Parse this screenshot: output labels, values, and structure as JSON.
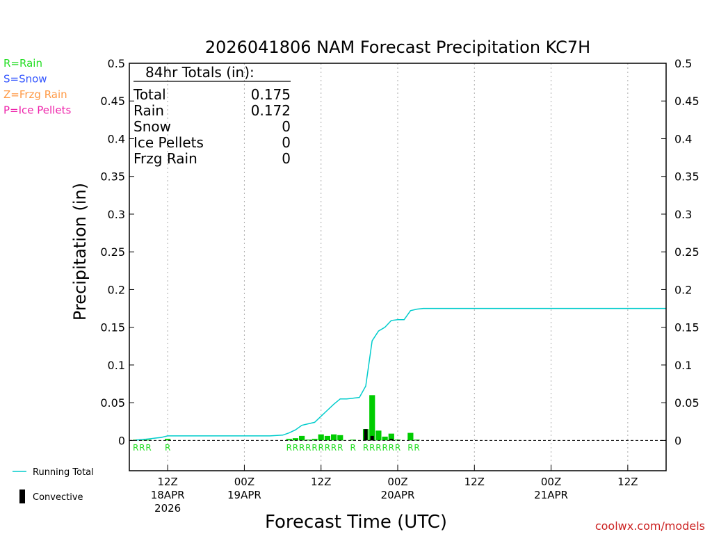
{
  "chart_data": {
    "type": "bar",
    "title": "2026041806 NAM Forecast Precipitation KC7H",
    "xlabel": "Forecast Time (UTC)",
    "ylabel": "Precipitation (in)",
    "ylim": [
      0,
      0.5
    ],
    "y_ticks": [
      0,
      0.05,
      0.1,
      0.15,
      0.2,
      0.25,
      0.3,
      0.35,
      0.4,
      0.45,
      0.5
    ],
    "y_tick_labels": [
      "0",
      "0.05",
      "0.1",
      "0.15",
      "0.2",
      "0.25",
      "0.3",
      "0.35",
      "0.4",
      "0.45",
      "0.5"
    ],
    "x_axis_unit": "forecast hour",
    "xlim": [
      0,
      84
    ],
    "x_ticks": [
      {
        "hour": 6,
        "lines": [
          "12Z",
          "18APR",
          "2026"
        ]
      },
      {
        "hour": 18,
        "lines": [
          "00Z",
          "19APR"
        ]
      },
      {
        "hour": 30,
        "lines": [
          "12Z"
        ]
      },
      {
        "hour": 42,
        "lines": [
          "00Z",
          "20APR"
        ]
      },
      {
        "hour": 54,
        "lines": [
          "12Z"
        ]
      },
      {
        "hour": 66,
        "lines": [
          "00Z",
          "21APR"
        ]
      },
      {
        "hour": 78,
        "lines": [
          "12Z"
        ]
      }
    ],
    "grid": "vertical dotted",
    "totals": {
      "heading": "84hr Totals (in):",
      "rows": [
        {
          "label": "Total",
          "value": "0.175"
        },
        {
          "label": "Rain",
          "value": "0.172"
        },
        {
          "label": "Snow",
          "value": "0"
        },
        {
          "label": "Ice Pellets",
          "value": "0"
        },
        {
          "label": "Frzg Rain",
          "value": "0"
        }
      ]
    },
    "type_legend": [
      {
        "text": "R=Rain",
        "color": "#22dd22"
      },
      {
        "text": "S=Snow",
        "color": "#3355ff"
      },
      {
        "text": "Z=Frzg Rain",
        "color": "#ff9944"
      },
      {
        "text": "P=Ice Pellets",
        "color": "#ee22aa"
      }
    ],
    "series_legend": [
      {
        "text": "Running Total",
        "color": "#00cccc",
        "kind": "line"
      },
      {
        "text": "Convective",
        "color": "#000000",
        "kind": "bar"
      }
    ],
    "precip_bars": [
      {
        "hour": 1,
        "value": 0.0005
      },
      {
        "hour": 2,
        "value": 0.0005
      },
      {
        "hour": 3,
        "value": 0.0005
      },
      {
        "hour": 6,
        "value": 0.002
      },
      {
        "hour": 25,
        "value": 0.002
      },
      {
        "hour": 26,
        "value": 0.003
      },
      {
        "hour": 27,
        "value": 0.006
      },
      {
        "hour": 28,
        "value": 0.001
      },
      {
        "hour": 29,
        "value": 0.002
      },
      {
        "hour": 30,
        "value": 0.008
      },
      {
        "hour": 31,
        "value": 0.006
      },
      {
        "hour": 32,
        "value": 0.008
      },
      {
        "hour": 33,
        "value": 0.007
      },
      {
        "hour": 35,
        "value": 0.001
      },
      {
        "hour": 37,
        "value": 0.015
      },
      {
        "hour": 38,
        "value": 0.06
      },
      {
        "hour": 39,
        "value": 0.013
      },
      {
        "hour": 40,
        "value": 0.005
      },
      {
        "hour": 41,
        "value": 0.009
      },
      {
        "hour": 42,
        "value": 0.001
      },
      {
        "hour": 44,
        "value": 0.01
      },
      {
        "hour": 45,
        "value": 0.001
      }
    ],
    "convective_bars": [
      {
        "hour": 37,
        "value": 0.015
      },
      {
        "hour": 38,
        "value": 0.006
      },
      {
        "hour": 41,
        "value": 0.002
      }
    ],
    "type_markers": [
      {
        "hour": 1,
        "text": "R"
      },
      {
        "hour": 2,
        "text": "R"
      },
      {
        "hour": 3,
        "text": "R"
      },
      {
        "hour": 6,
        "text": "R"
      },
      {
        "hour": 25,
        "text": "R"
      },
      {
        "hour": 26,
        "text": "R"
      },
      {
        "hour": 27,
        "text": "R"
      },
      {
        "hour": 28,
        "text": "R"
      },
      {
        "hour": 29,
        "text": "R"
      },
      {
        "hour": 30,
        "text": "R"
      },
      {
        "hour": 31,
        "text": "R"
      },
      {
        "hour": 32,
        "text": "R"
      },
      {
        "hour": 33,
        "text": "R"
      },
      {
        "hour": 35,
        "text": "R"
      },
      {
        "hour": 37,
        "text": "R"
      },
      {
        "hour": 38,
        "text": "R"
      },
      {
        "hour": 39,
        "text": "R"
      },
      {
        "hour": 40,
        "text": "R"
      },
      {
        "hour": 41,
        "text": "R"
      },
      {
        "hour": 42,
        "text": "R"
      },
      {
        "hour": 44,
        "text": "R"
      },
      {
        "hour": 45,
        "text": "R"
      }
    ],
    "running_total": [
      {
        "hour": 1,
        "value": 0.0005
      },
      {
        "hour": 2,
        "value": 0.001
      },
      {
        "hour": 3,
        "value": 0.002
      },
      {
        "hour": 4,
        "value": 0.003
      },
      {
        "hour": 5,
        "value": 0.004
      },
      {
        "hour": 6,
        "value": 0.006
      },
      {
        "hour": 10,
        "value": 0.006
      },
      {
        "hour": 14,
        "value": 0.006
      },
      {
        "hour": 18,
        "value": 0.006
      },
      {
        "hour": 22,
        "value": 0.006
      },
      {
        "hour": 24,
        "value": 0.007
      },
      {
        "hour": 25,
        "value": 0.01
      },
      {
        "hour": 26,
        "value": 0.014
      },
      {
        "hour": 27,
        "value": 0.02
      },
      {
        "hour": 28,
        "value": 0.022
      },
      {
        "hour": 29,
        "value": 0.024
      },
      {
        "hour": 30,
        "value": 0.032
      },
      {
        "hour": 31,
        "value": 0.04
      },
      {
        "hour": 32,
        "value": 0.048
      },
      {
        "hour": 33,
        "value": 0.055
      },
      {
        "hour": 34,
        "value": 0.055
      },
      {
        "hour": 35,
        "value": 0.056
      },
      {
        "hour": 36,
        "value": 0.057
      },
      {
        "hour": 37,
        "value": 0.072
      },
      {
        "hour": 38,
        "value": 0.132
      },
      {
        "hour": 39,
        "value": 0.145
      },
      {
        "hour": 40,
        "value": 0.15
      },
      {
        "hour": 41,
        "value": 0.159
      },
      {
        "hour": 42,
        "value": 0.16
      },
      {
        "hour": 43,
        "value": 0.16
      },
      {
        "hour": 44,
        "value": 0.172
      },
      {
        "hour": 45,
        "value": 0.174
      },
      {
        "hour": 46,
        "value": 0.175
      },
      {
        "hour": 84,
        "value": 0.175
      }
    ],
    "colors": {
      "rain_bar": "#00cc00",
      "rain_marker": "#22dd22",
      "running_total": "#00cccc",
      "convective": "#000000",
      "credit": "#cc2222",
      "grid": "#aaaaaa"
    },
    "credit": "coolwx.com/models"
  }
}
